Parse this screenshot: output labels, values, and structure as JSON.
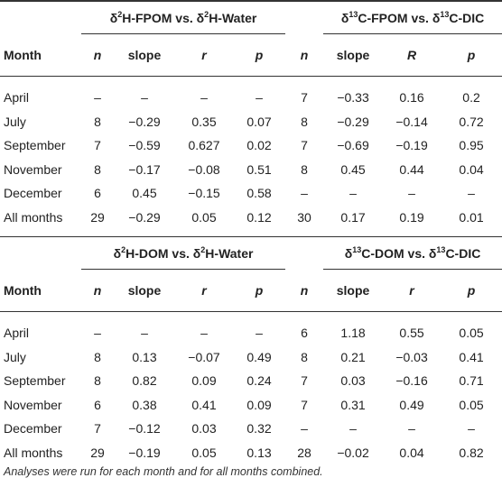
{
  "table1": {
    "group_left": {
      "iso": "2",
      "a": "H-FPOM vs. ",
      "iso2": "2",
      "b": "H-Water"
    },
    "group_right": {
      "iso": "13",
      "a": "C-FPOM vs. ",
      "iso2": "13",
      "b": "C-DIC"
    },
    "headers": [
      "Month",
      "n",
      "slope",
      "r",
      "p",
      "n",
      "slope",
      "R",
      "p"
    ],
    "rows": [
      [
        "April",
        "–",
        "–",
        "–",
        "–",
        "7",
        "−0.33",
        "0.16",
        "0.2"
      ],
      [
        "July",
        "8",
        "−0.29",
        "0.35",
        "0.07",
        "8",
        "−0.29",
        "−0.14",
        "0.72"
      ],
      [
        "September",
        "7",
        "−0.59",
        "0.627",
        "0.02",
        "7",
        "−0.69",
        "−0.19",
        "0.95"
      ],
      [
        "November",
        "8",
        "−0.17",
        "−0.08",
        "0.51",
        "8",
        "0.45",
        "0.44",
        "0.04"
      ],
      [
        "December",
        "6",
        "0.45",
        "−0.15",
        "0.58",
        "–",
        "–",
        "–",
        "–"
      ],
      [
        "All months",
        "29",
        "−0.29",
        "0.05",
        "0.12",
        "30",
        "0.17",
        "0.19",
        "0.01"
      ]
    ]
  },
  "table2": {
    "group_left": {
      "iso": "2",
      "a": "H-DOM vs. ",
      "iso2": "2",
      "b": "H-Water"
    },
    "group_right": {
      "iso": "13",
      "a": "C-DOM vs. ",
      "iso2": "13",
      "b": "C-DIC"
    },
    "headers": [
      "Month",
      "n",
      "slope",
      "r",
      "p",
      "n",
      "slope",
      "r",
      "p"
    ],
    "rows": [
      [
        "April",
        "–",
        "–",
        "–",
        "–",
        "6",
        "1.18",
        "0.55",
        "0.05"
      ],
      [
        "July",
        "8",
        "0.13",
        "−0.07",
        "0.49",
        "8",
        "0.21",
        "−0.03",
        "0.41"
      ],
      [
        "September",
        "8",
        "0.82",
        "0.09",
        "0.24",
        "7",
        "0.03",
        "−0.16",
        "0.71"
      ],
      [
        "November",
        "6",
        "0.38",
        "0.41",
        "0.09",
        "7",
        "0.31",
        "0.49",
        "0.05"
      ],
      [
        "December",
        "7",
        "−0.12",
        "0.03",
        "0.32",
        "–",
        "–",
        "–",
        "–"
      ],
      [
        "All months",
        "29",
        "−0.19",
        "0.05",
        "0.13",
        "28",
        "−0.02",
        "0.04",
        "0.82"
      ]
    ]
  },
  "delta_symbol": "δ",
  "footnote": "Analyses were run for each month and for all months combined."
}
